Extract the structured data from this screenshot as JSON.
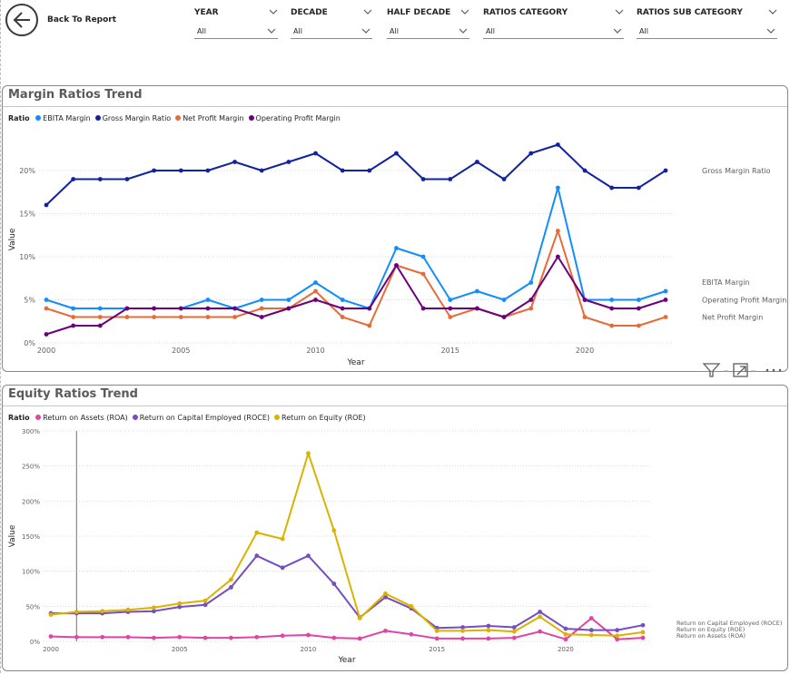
{
  "header": {
    "back_label": "Back To Report",
    "slicers": [
      {
        "label": "YEAR",
        "value": "All"
      },
      {
        "label": "DECADE",
        "value": "All"
      },
      {
        "label": "HALF DECADE",
        "value": "All"
      },
      {
        "label": "RATIOS CATEGORY",
        "value": "All"
      },
      {
        "label": "RATIOS SUB CATEGORY",
        "value": "All"
      }
    ]
  },
  "margin_panel": {
    "title": "Margin Ratios Trend",
    "legend_title": "Ratio"
  },
  "equity_panel": {
    "title": "Equity Ratios Trend",
    "legend_title": "Ratio"
  },
  "chart_data": [
    {
      "type": "line",
      "title": "Margin Ratios Trend",
      "xlabel": "Year",
      "ylabel": "Value",
      "x": [
        2000,
        2001,
        2002,
        2003,
        2004,
        2005,
        2006,
        2007,
        2008,
        2009,
        2010,
        2011,
        2012,
        2013,
        2014,
        2015,
        2016,
        2017,
        2018,
        2019,
        2020,
        2021,
        2022,
        2023
      ],
      "xlim": [
        2000,
        2023
      ],
      "ylim": [
        0,
        24
      ],
      "yticks": [
        0,
        5,
        10,
        15,
        20
      ],
      "ytick_labels": [
        "0%",
        "5%",
        "10%",
        "15%",
        "20%"
      ],
      "xticks": [
        2000,
        2005,
        2010,
        2015,
        2020
      ],
      "xtick_labels": [
        "2000",
        "2005",
        "2010",
        "2015",
        "2020"
      ],
      "grid": "horizontal dotted",
      "legend_position": "top-left",
      "series": [
        {
          "name": "EBITA Margin",
          "color": "#118DFF",
          "end_label": "EBITA Margin",
          "values": [
            5,
            4,
            4,
            4,
            4,
            4,
            5,
            4,
            5,
            5,
            7,
            5,
            4,
            11,
            10,
            5,
            6,
            5,
            7,
            18,
            5,
            5,
            5,
            6
          ]
        },
        {
          "name": "Gross Margin Ratio",
          "color": "#12239E",
          "end_label": "Gross Margin Ratio",
          "values": [
            16,
            19,
            19,
            19,
            20,
            20,
            20,
            21,
            20,
            21,
            22,
            20,
            20,
            22,
            19,
            19,
            21,
            19,
            22,
            23,
            20,
            18,
            18,
            20
          ]
        },
        {
          "name": "Net Profit Margin",
          "color": "#E66C37",
          "end_label": "Net Profit Margin",
          "values": [
            4,
            3,
            3,
            3,
            3,
            3,
            3,
            3,
            4,
            4,
            6,
            3,
            2,
            9,
            8,
            3,
            4,
            3,
            4,
            13,
            3,
            2,
            2,
            3
          ]
        },
        {
          "name": "Operating Profit Margin",
          "color": "#6B007B",
          "end_label": "Operating Profit Margin",
          "values": [
            1,
            2,
            2,
            4,
            4,
            4,
            4,
            4,
            3,
            4,
            5,
            4,
            4,
            9,
            4,
            4,
            4,
            3,
            5,
            10,
            5,
            4,
            4,
            5
          ]
        }
      ]
    },
    {
      "type": "line",
      "title": "Equity Ratios Trend",
      "xlabel": "Year",
      "ylabel": "Value",
      "x": [
        2000,
        2001,
        2002,
        2003,
        2004,
        2005,
        2006,
        2007,
        2008,
        2009,
        2010,
        2011,
        2012,
        2013,
        2014,
        2015,
        2016,
        2017,
        2018,
        2019,
        2020,
        2021,
        2022,
        2023
      ],
      "xlim": [
        2000,
        2023
      ],
      "ylim": [
        0,
        300
      ],
      "yticks": [
        0,
        50,
        100,
        150,
        200,
        250,
        300
      ],
      "ytick_labels": [
        "0%",
        "50%",
        "100%",
        "150%",
        "200%",
        "250%",
        "300%"
      ],
      "xticks": [
        2000,
        2005,
        2010,
        2015,
        2020
      ],
      "xtick_labels": [
        "2000",
        "2005",
        "2010",
        "2015",
        "2020"
      ],
      "grid": "horizontal dotted",
      "legend_position": "top-left",
      "series": [
        {
          "name": "Return on Assets (ROA)",
          "color": "#E044A7",
          "end_label": "Return on Assets (ROA)",
          "values": [
            7,
            6,
            6,
            6,
            5,
            6,
            5,
            5,
            6,
            8,
            9,
            5,
            4,
            15,
            10,
            4,
            4,
            4,
            5,
            14,
            3,
            33,
            3,
            5
          ]
        },
        {
          "name": "Return on Capital Employed (ROCE)",
          "color": "#744EC2",
          "end_label": "Return on Capital Employed (ROCE)",
          "values": [
            40,
            40,
            40,
            42,
            43,
            49,
            52,
            77,
            122,
            105,
            122,
            82,
            34,
            63,
            47,
            19,
            20,
            22,
            20,
            42,
            18,
            16,
            16,
            23
          ]
        },
        {
          "name": "Return on Equity (ROE)",
          "color": "#D9B300",
          "end_label": "Return on Equity (ROE)",
          "values": [
            38,
            42,
            43,
            45,
            48,
            54,
            58,
            88,
            155,
            146,
            268,
            158,
            33,
            68,
            50,
            15,
            15,
            16,
            14,
            35,
            10,
            9,
            8,
            13
          ]
        }
      ]
    }
  ]
}
